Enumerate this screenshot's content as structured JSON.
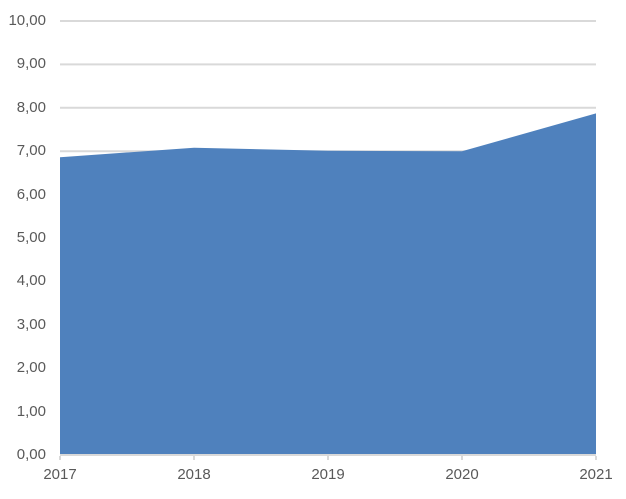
{
  "chart_data": {
    "type": "area",
    "title": "",
    "xlabel": "",
    "ylabel": "",
    "categories": [
      "2017",
      "2018",
      "2019",
      "2020",
      "2021"
    ],
    "values": [
      6.86,
      7.08,
      7.01,
      7.0,
      7.87
    ],
    "ylim": [
      0,
      10
    ],
    "y_tick_step": 1,
    "decimal_separator": ",",
    "y_tick_labels": [
      "0,00",
      "1,00",
      "2,00",
      "3,00",
      "4,00",
      "5,00",
      "6,00",
      "7,00",
      "8,00",
      "9,00",
      "10,00"
    ],
    "grid": true,
    "legend_position": "none",
    "colors": {
      "area_fill": "#4F81BD",
      "gridline": "#D9D9D9",
      "axis_line": "#D9D9D9",
      "tick_mark": "#D9D9D9",
      "tick_label": "#595959",
      "background": "#FFFFFF"
    }
  }
}
